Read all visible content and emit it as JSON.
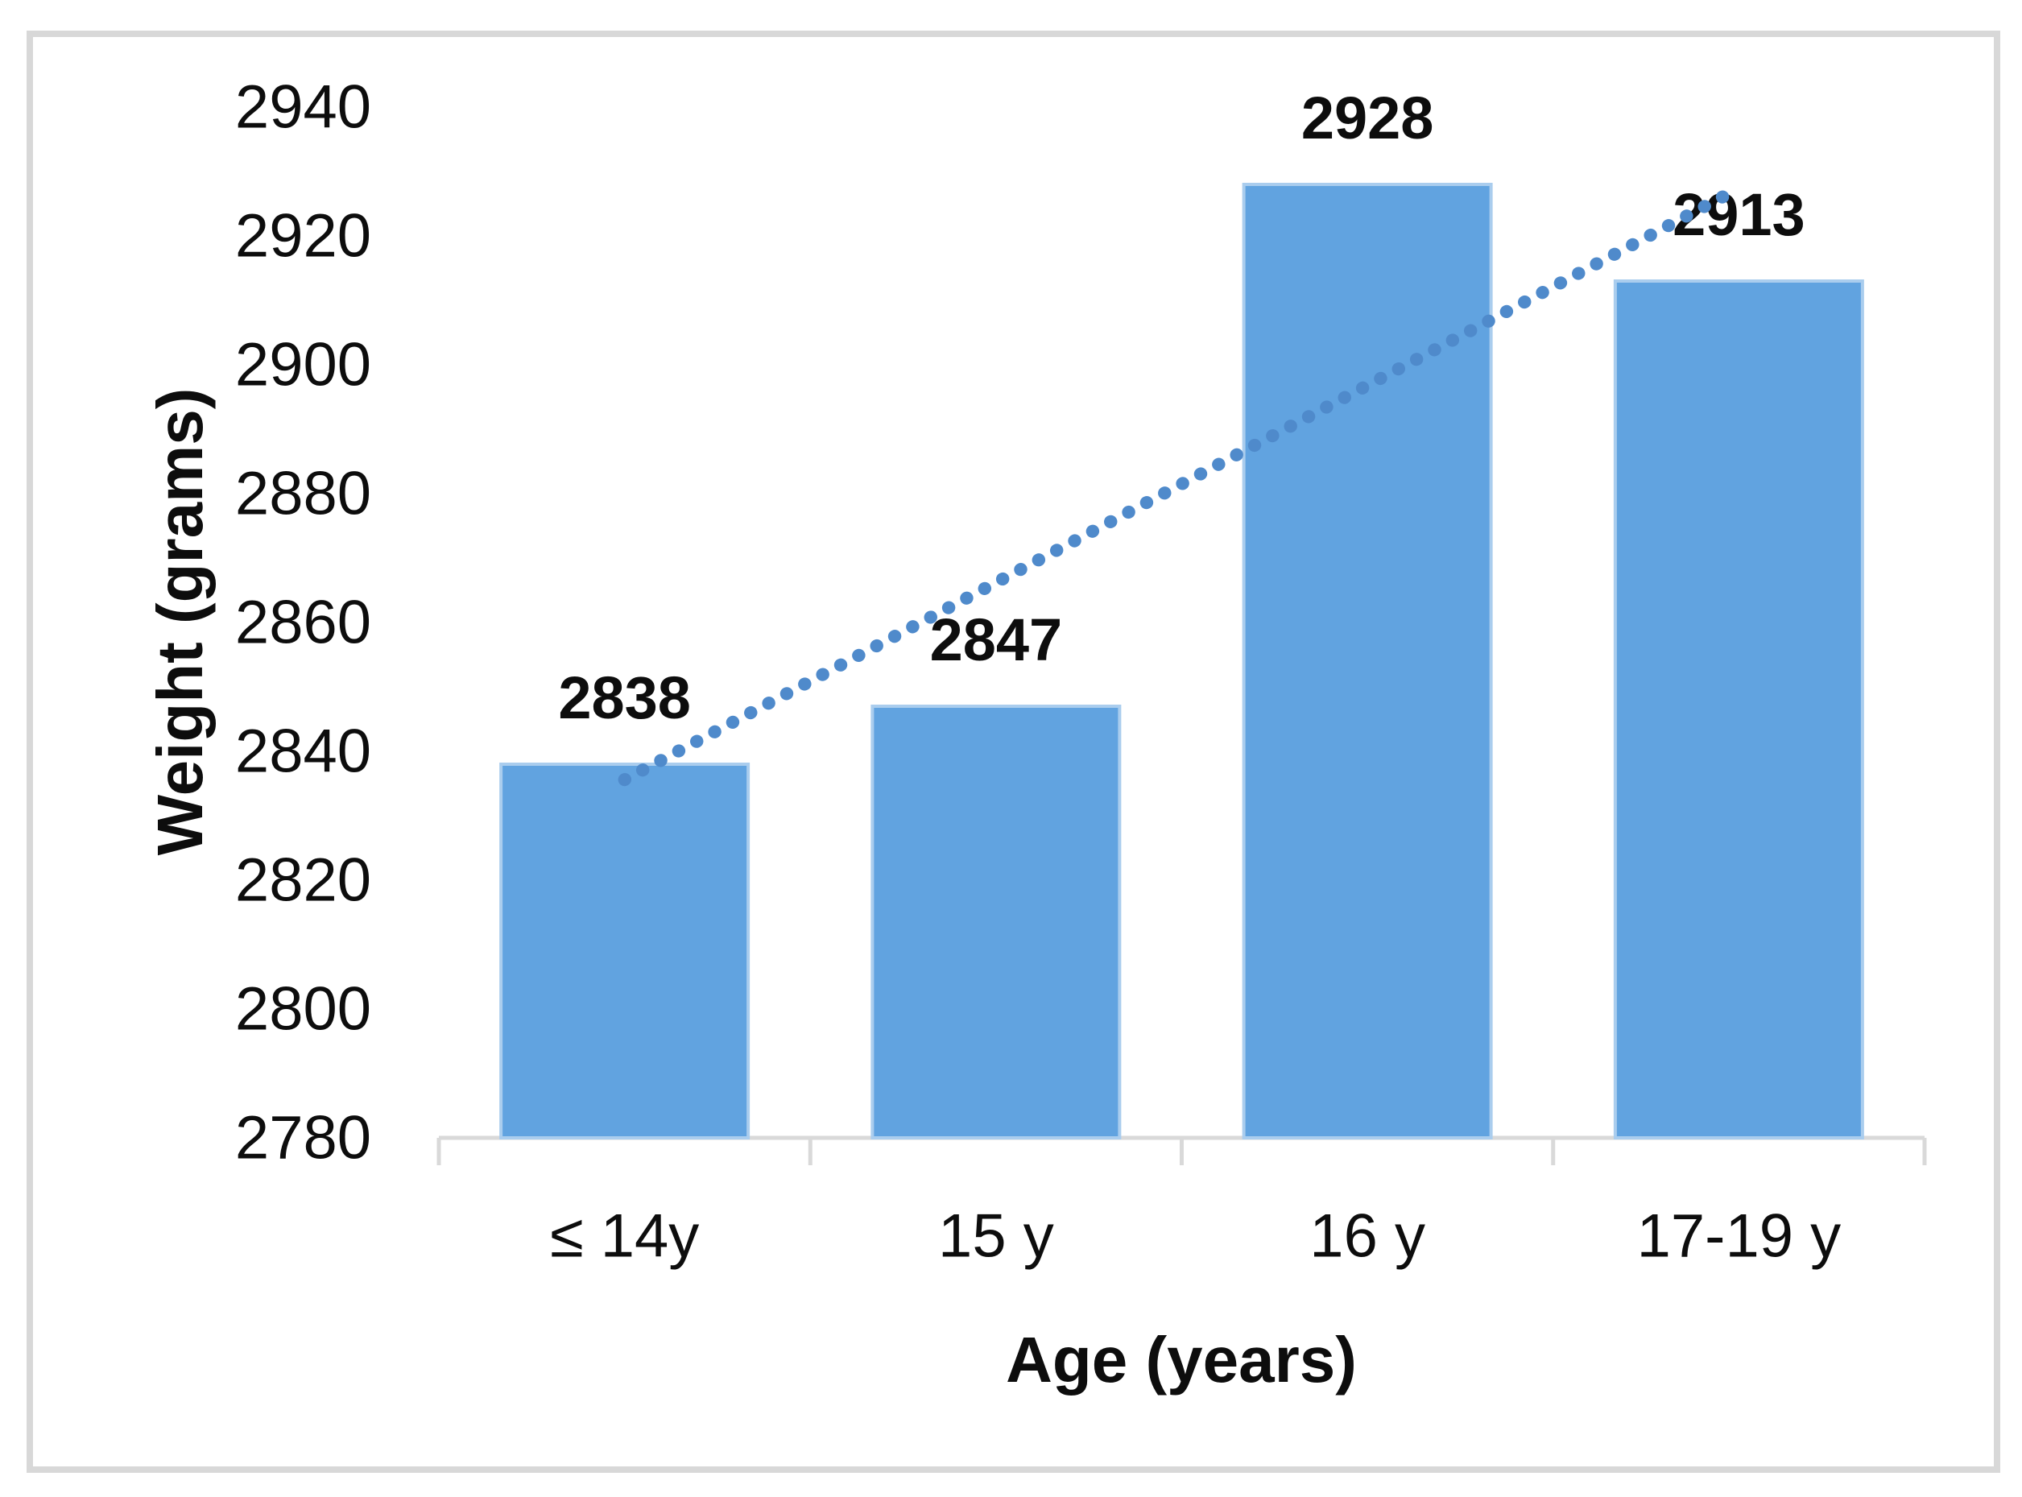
{
  "chart_data": {
    "type": "bar",
    "title": "",
    "categories": [
      "≤ 14y",
      "15 y",
      "16 y",
      "17-19 y"
    ],
    "values": [
      2838,
      2847,
      2928,
      2913
    ],
    "data_labels": [
      "2838",
      "2847",
      "2928",
      "2913"
    ],
    "xlabel": "Age (years)",
    "ylabel": "Weight (grams)",
    "ylim": [
      2780,
      2940
    ],
    "ytick_interval": 20,
    "yticks": [
      2940,
      2920,
      2900,
      2880,
      2860,
      2840,
      2820,
      2800,
      2780
    ],
    "grid": false,
    "legend": false,
    "trendline": {
      "type": "linear",
      "style": "dotted",
      "fit_endpoints_values": [
        2835.6,
        2927.4
      ]
    },
    "colors": {
      "bar_fill": "#61a3e0",
      "bar_edge": "#aacdee",
      "trendline_dot": "#4f8acb",
      "axis_line": "#d9d9d9",
      "text": "#0d0d0d",
      "frame_border": "#d8d8d8",
      "background": "#ffffff"
    }
  }
}
